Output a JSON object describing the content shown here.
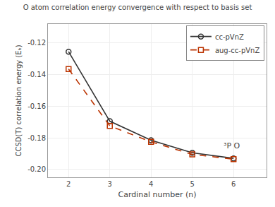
{
  "chart_data": {
    "type": "line",
    "title": "O atom correlation energy convergence with respect to basis set",
    "x_label": "Cardinal number (n)",
    "y_label": "CCSD(T) correlation energy (Eₕ)",
    "x": [
      2,
      3,
      4,
      5,
      6
    ],
    "series": [
      {
        "name": "cc-pVnZ",
        "color": "#333333",
        "marker": "circle",
        "line_style": "solid",
        "values": [
          -0.1255,
          -0.1695,
          -0.1815,
          -0.1895,
          -0.193
        ]
      },
      {
        "name": "aug-cc-pVnZ",
        "color": "#bb3300",
        "marker": "square",
        "line_style": "dashed",
        "values": [
          -0.1365,
          -0.1725,
          -0.1825,
          -0.1905,
          -0.1935
        ]
      }
    ],
    "xlim": [
      1.5,
      6.8
    ],
    "ylim": [
      -0.205,
      -0.108
    ],
    "xticks": [
      2,
      3,
      4,
      5,
      6
    ],
    "yticks": [
      -0.12,
      -0.14,
      -0.16,
      -0.18,
      {
        "value": -0.2,
        "label": "-0.20"
      }
    ],
    "grid": true,
    "legend": "upper right",
    "annotations": [
      {
        "text": "³P O",
        "x": 5.72,
        "y": -0.1905
      }
    ]
  }
}
